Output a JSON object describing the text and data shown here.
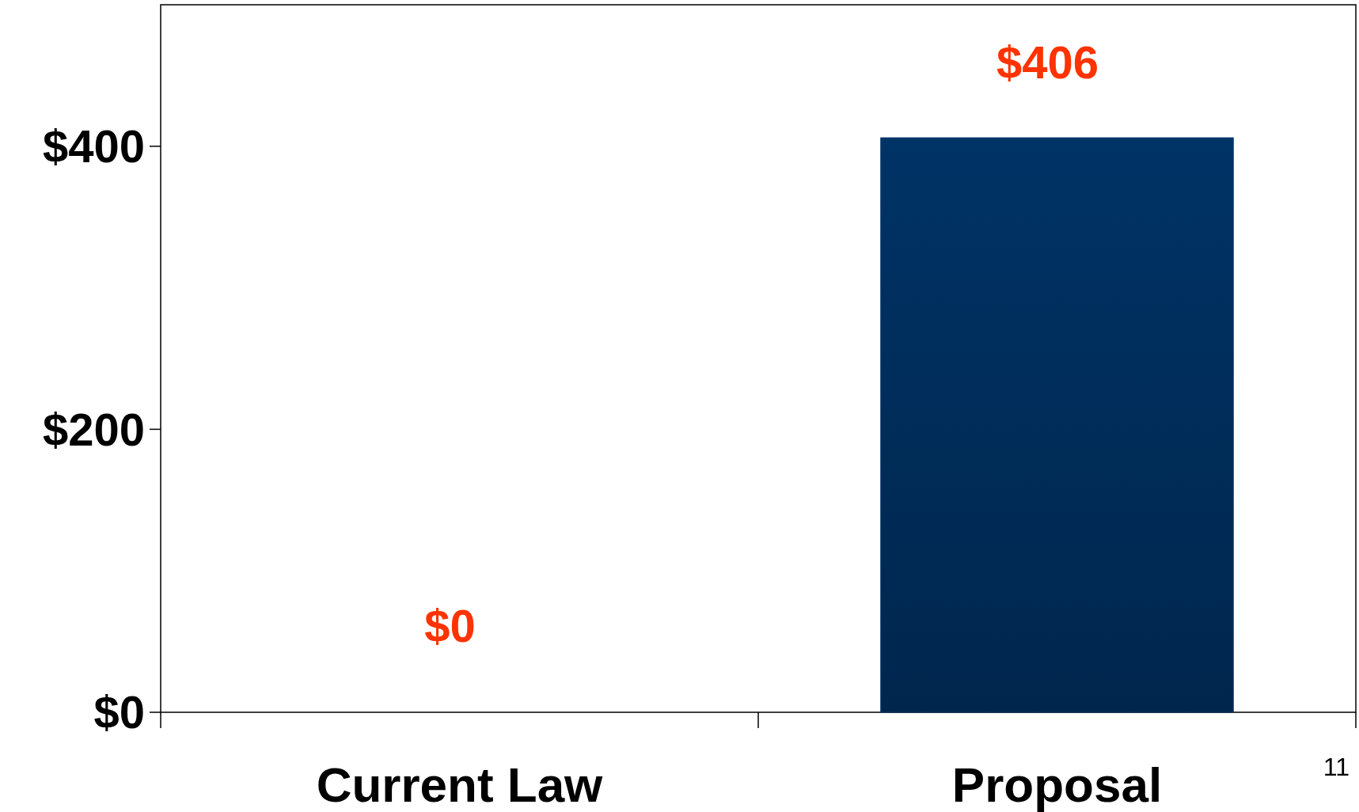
{
  "chart_data": {
    "type": "bar",
    "categories": [
      "Current Law",
      "Proposal"
    ],
    "values": [
      0,
      406
    ],
    "value_labels": [
      "$0",
      "$406"
    ],
    "color": "#003366",
    "ylim": [
      0,
      500
    ],
    "yticks": [
      {
        "value": 0,
        "label": "$0"
      },
      {
        "value": 200,
        "label": "$200"
      },
      {
        "value": 400,
        "label": "$400"
      }
    ],
    "grid": false,
    "annotations": [
      "11"
    ]
  }
}
